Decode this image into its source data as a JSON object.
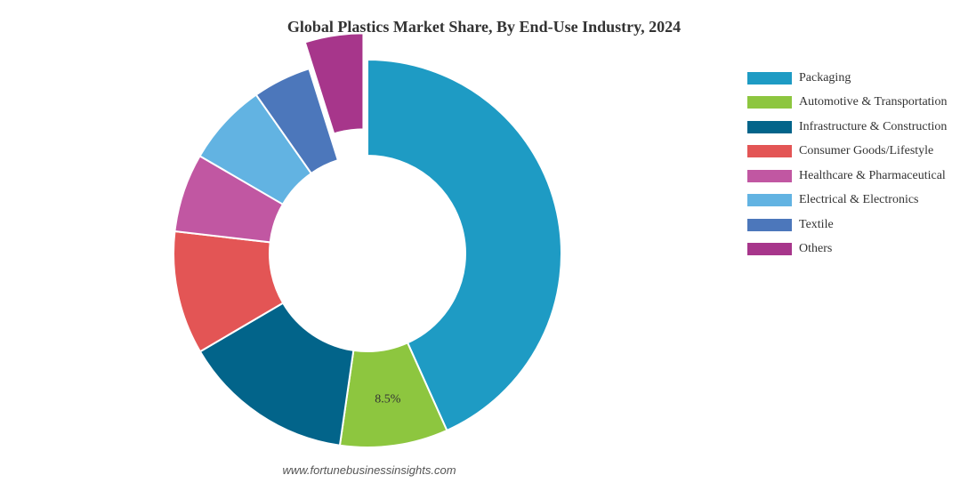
{
  "chart_data": {
    "type": "pie",
    "variant": "donut",
    "title": "Global Plastics Market Share, By End-Use Industry, 2024",
    "categories": [
      "Packaging",
      "Automotive & Transportation",
      "Infrastructure & Construction",
      "Consumer Goods/Lifestyle",
      "Healthcare & Pharmaceutical",
      "Electrical & Electronics",
      "Textile",
      "Others"
    ],
    "values": [
      40.9,
      8.5,
      13.5,
      9.7,
      6.2,
      6.5,
      4.6,
      4.6
    ],
    "colors": [
      "#1e9bc4",
      "#8dc63f",
      "#02648a",
      "#e35555",
      "#c157a2",
      "#62b3e2",
      "#4c77bb",
      "#a7368b"
    ],
    "data_labels": [
      "",
      "8.5%",
      "",
      "",
      "",
      "",
      "",
      ""
    ],
    "exploded": "Others",
    "legend_position": "right"
  },
  "source": "www.fortunebusinessinsights.com"
}
